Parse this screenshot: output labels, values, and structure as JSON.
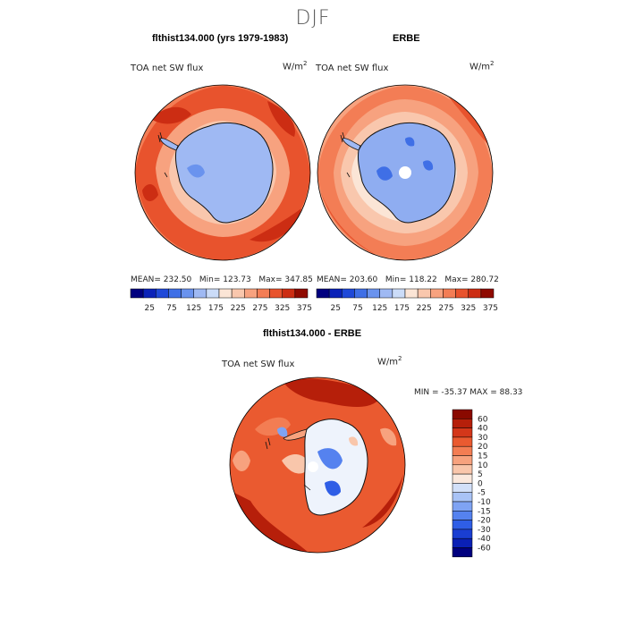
{
  "season": "DJF",
  "colors": {
    "abs_scale": [
      "#00007f",
      "#0a22b8",
      "#1f49d8",
      "#3f6fe6",
      "#6a93ee",
      "#9fb9f3",
      "#cbdcf8",
      "#fbe5d6",
      "#f9c7ad",
      "#f7a27f",
      "#f37d55",
      "#e8532d",
      "#cc2d13",
      "#8f0a00"
    ],
    "diff_scale": [
      "#00007f",
      "#0a20b5",
      "#1a3ed2",
      "#2f5ee6",
      "#5582ef",
      "#7fa3f3",
      "#a9c3f6",
      "#d2e0f9",
      "#fae8dd",
      "#f9c6ab",
      "#f7a27e",
      "#f37d53",
      "#ea5a30",
      "#d4371a",
      "#b61f0a",
      "#8a0900"
    ],
    "continent_abs_model": "#9fb9f3",
    "continent_abs_obs": "#8fadf1",
    "continent_diff": "#eef3fc"
  },
  "chart_data": [
    {
      "type": "polar_contour_map",
      "panel": "top-left",
      "title": "flthist134.000 (yrs 1979-1983)",
      "variable": "TOA net SW flux",
      "units": "W/m",
      "units_exp": "2",
      "stats": {
        "mean_label": "MEAN=",
        "mean": "232.50",
        "min_label": "Min=",
        "min": "123.73",
        "max_label": "Max=",
        "max": "347.85"
      }
    },
    {
      "type": "polar_contour_map",
      "panel": "top-right",
      "title": "ERBE",
      "variable": "TOA net SW flux",
      "units": "W/m",
      "units_exp": "2",
      "stats": {
        "mean_label": "MEAN=",
        "mean": "203.60",
        "min_label": "Min=",
        "min": "118.22",
        "max_label": "Max=",
        "max": "280.72"
      }
    },
    {
      "type": "colorbar",
      "orientation": "horizontal",
      "levels": [
        "25",
        "75",
        "125",
        "175",
        "225",
        "275",
        "325",
        "375"
      ]
    },
    {
      "type": "polar_contour_map",
      "panel": "bottom",
      "title": "flthist134.000 - ERBE",
      "variable": "TOA net SW flux",
      "units": "W/m",
      "units_exp": "2",
      "minmax_text": "MIN = -35.37 MAX =  88.33",
      "colorbar": {
        "orientation": "vertical",
        "levels": [
          "60",
          "40",
          "30",
          "20",
          "15",
          "10",
          "5",
          "0",
          "-5",
          "-10",
          "-15",
          "-20",
          "-30",
          "-40",
          "-60"
        ]
      }
    }
  ]
}
